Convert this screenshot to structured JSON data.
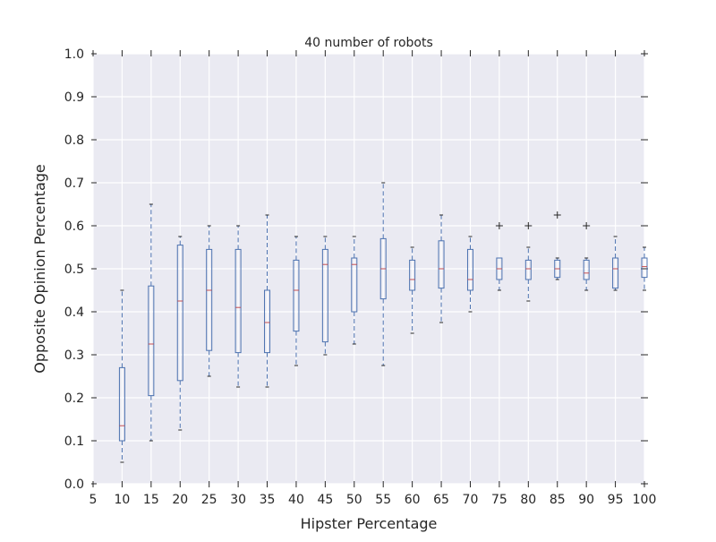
{
  "chart_data": {
    "type": "box",
    "title": "40 number of robots",
    "xlabel": "Hipster Percentage",
    "ylabel": "Opposite Opinion Percentage",
    "xlim": [
      5,
      100
    ],
    "ylim": [
      0.0,
      1.0
    ],
    "x_ticks": [
      5,
      10,
      15,
      20,
      25,
      30,
      35,
      40,
      45,
      50,
      55,
      60,
      65,
      70,
      75,
      80,
      85,
      90,
      95,
      100
    ],
    "x_tick_labels": [
      "5",
      "10",
      "15",
      "20",
      "25",
      "30",
      "35",
      "40",
      "45",
      "50",
      "55",
      "60",
      "65",
      "70",
      "75",
      "80",
      "85",
      "90",
      "95",
      "100"
    ],
    "y_ticks": [
      0.0,
      0.1,
      0.2,
      0.3,
      0.4,
      0.5,
      0.6,
      0.7,
      0.8,
      0.9,
      1.0
    ],
    "y_tick_labels": [
      "0.0",
      "0.1",
      "0.2",
      "0.3",
      "0.4",
      "0.5",
      "0.6",
      "0.7",
      "0.8",
      "0.9",
      "1.0"
    ],
    "grid": true,
    "background": "#eaeaf2",
    "colors": {
      "box": "#4c72b0",
      "median": "#c44e52",
      "whisker": "#4c72b0",
      "flier": "#262626",
      "grid": "#ffffff"
    },
    "boxes": [
      {
        "x": 10,
        "whislo": 0.05,
        "q1": 0.1,
        "med": 0.135,
        "q3": 0.27,
        "whishi": 0.45,
        "fliers": []
      },
      {
        "x": 15,
        "whislo": 0.1,
        "q1": 0.205,
        "med": 0.325,
        "q3": 0.46,
        "whishi": 0.65,
        "fliers": []
      },
      {
        "x": 20,
        "whislo": 0.125,
        "q1": 0.24,
        "med": 0.425,
        "q3": 0.555,
        "whishi": 0.575,
        "fliers": []
      },
      {
        "x": 25,
        "whislo": 0.25,
        "q1": 0.31,
        "med": 0.45,
        "q3": 0.545,
        "whishi": 0.6,
        "fliers": []
      },
      {
        "x": 30,
        "whislo": 0.225,
        "q1": 0.305,
        "med": 0.41,
        "q3": 0.545,
        "whishi": 0.6,
        "fliers": []
      },
      {
        "x": 35,
        "whislo": 0.225,
        "q1": 0.305,
        "med": 0.375,
        "q3": 0.45,
        "whishi": 0.625,
        "fliers": []
      },
      {
        "x": 40,
        "whislo": 0.275,
        "q1": 0.355,
        "med": 0.45,
        "q3": 0.52,
        "whishi": 0.575,
        "fliers": []
      },
      {
        "x": 45,
        "whislo": 0.3,
        "q1": 0.33,
        "med": 0.51,
        "q3": 0.545,
        "whishi": 0.575,
        "fliers": []
      },
      {
        "x": 50,
        "whislo": 0.325,
        "q1": 0.4,
        "med": 0.51,
        "q3": 0.525,
        "whishi": 0.575,
        "fliers": []
      },
      {
        "x": 55,
        "whislo": 0.275,
        "q1": 0.43,
        "med": 0.5,
        "q3": 0.57,
        "whishi": 0.7,
        "fliers": []
      },
      {
        "x": 60,
        "whislo": 0.35,
        "q1": 0.45,
        "med": 0.475,
        "q3": 0.52,
        "whishi": 0.55,
        "fliers": []
      },
      {
        "x": 65,
        "whislo": 0.375,
        "q1": 0.455,
        "med": 0.5,
        "q3": 0.565,
        "whishi": 0.625,
        "fliers": []
      },
      {
        "x": 70,
        "whislo": 0.4,
        "q1": 0.45,
        "med": 0.475,
        "q3": 0.545,
        "whishi": 0.575,
        "fliers": []
      },
      {
        "x": 75,
        "whislo": 0.45,
        "q1": 0.475,
        "med": 0.5,
        "q3": 0.525,
        "whishi": 0.525,
        "fliers": [
          0.6
        ]
      },
      {
        "x": 80,
        "whislo": 0.425,
        "q1": 0.475,
        "med": 0.5,
        "q3": 0.52,
        "whishi": 0.55,
        "fliers": [
          0.6
        ]
      },
      {
        "x": 85,
        "whislo": 0.475,
        "q1": 0.48,
        "med": 0.5,
        "q3": 0.52,
        "whishi": 0.525,
        "fliers": [
          0.625
        ]
      },
      {
        "x": 90,
        "whislo": 0.45,
        "q1": 0.475,
        "med": 0.49,
        "q3": 0.52,
        "whishi": 0.525,
        "fliers": [
          0.6
        ]
      },
      {
        "x": 95,
        "whislo": 0.45,
        "q1": 0.455,
        "med": 0.5,
        "q3": 0.525,
        "whishi": 0.575,
        "fliers": []
      },
      {
        "x": 100,
        "whislo": 0.45,
        "q1": 0.48,
        "med": 0.505,
        "q3": 0.525,
        "whishi": 0.55,
        "fliers": []
      }
    ]
  }
}
